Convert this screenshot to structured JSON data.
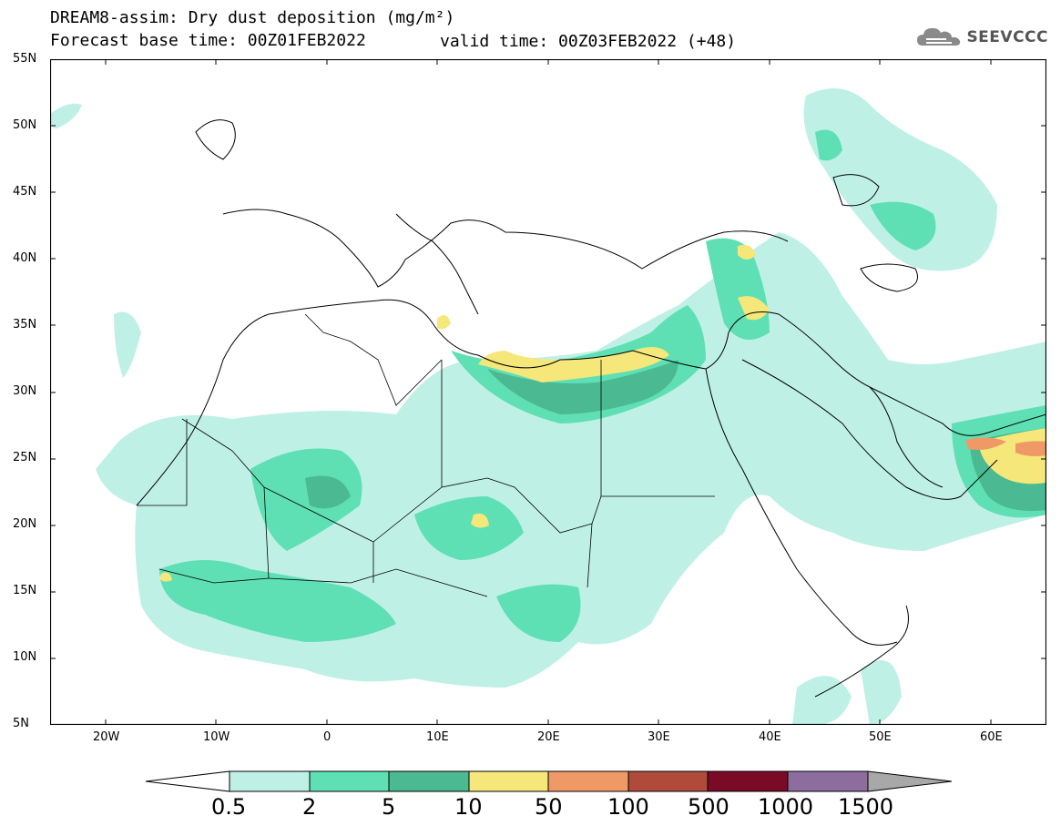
{
  "title": {
    "line1": "DREAM8-assim: Dry dust deposition (mg/m²)",
    "line2": "Forecast base time: 00Z01FEB2022",
    "valid": "valid time: 00Z03FEB2022 (+48)"
  },
  "logo": {
    "icon": "cloud-icon",
    "text": "SEEVCCC"
  },
  "map": {
    "lon_range": [
      -25,
      65
    ],
    "lat_range": [
      5,
      55
    ],
    "lat_labels": [
      "55N",
      "50N",
      "45N",
      "40N",
      "35N",
      "30N",
      "25N",
      "20N",
      "15N",
      "10N",
      "5N"
    ],
    "lon_labels": [
      "20W",
      "10W",
      "0",
      "10E",
      "20E",
      "30E",
      "40E",
      "50E",
      "60E"
    ]
  },
  "legend": {
    "labels": [
      "0.5",
      "2",
      "5",
      "10",
      "50",
      "100",
      "500",
      "1000",
      "1500"
    ],
    "colors": [
      "#ffffff",
      "#bff0e6",
      "#5ee0b4",
      "#4bb992",
      "#f5e77a",
      "#ef9a66",
      "#b04b3c",
      "#7a0a26",
      "#8d6d9e",
      "#a8a8a8"
    ]
  }
}
